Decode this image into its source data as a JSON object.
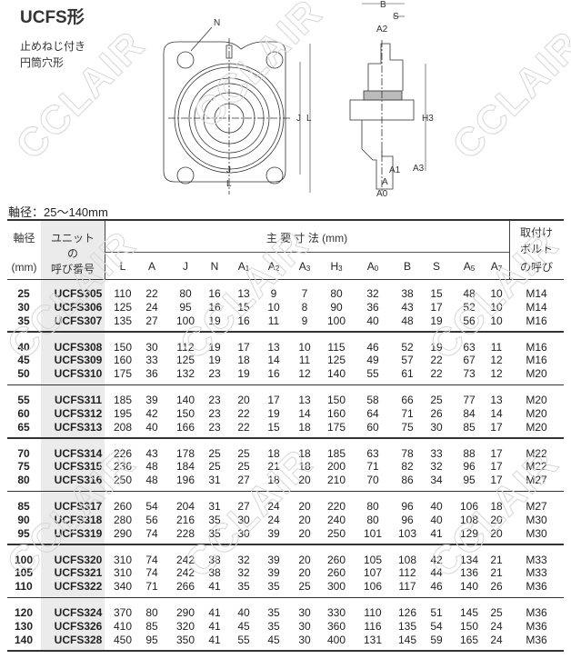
{
  "title": "UCFS形",
  "subtitle_lines": [
    "止めねじ付き",
    "円筒穴形"
  ],
  "watermark": "CCLAIR",
  "drawing_labels": {
    "N": "N",
    "J": "J",
    "L": "L",
    "B": "B",
    "S": "S",
    "A2": "A2",
    "H3": "H3",
    "A1": "A1",
    "A3": "A3",
    "A": "A",
    "A0": "A0"
  },
  "shaft_range": "軸径：25〜140mm",
  "table": {
    "head": {
      "shaft": "軸径",
      "shaft_unit": "(mm)",
      "unit_line1": "ユニット",
      "unit_line2": "の",
      "unit_line3": "呼び番号",
      "dims": "主 要 寸 法 (mm)",
      "bolt_line1": "取付け",
      "bolt_line2": "ボルト",
      "bolt_line3": "の呼び",
      "cols": [
        {
          "main": "L",
          "sub": ""
        },
        {
          "main": "A",
          "sub": ""
        },
        {
          "main": "J",
          "sub": ""
        },
        {
          "main": "N",
          "sub": ""
        },
        {
          "main": "A",
          "sub": "1"
        },
        {
          "main": "A",
          "sub": "2"
        },
        {
          "main": "A",
          "sub": "3"
        },
        {
          "main": "H",
          "sub": "3"
        },
        {
          "main": "A",
          "sub": "0"
        },
        {
          "main": "B",
          "sub": ""
        },
        {
          "main": "S",
          "sub": ""
        },
        {
          "main": "A",
          "sub": "5"
        },
        {
          "main": "A",
          "sub": "7"
        }
      ]
    },
    "groups": [
      [
        [
          "25",
          "UCFS305",
          "110",
          "22",
          "80",
          "16",
          "13",
          "9",
          "7",
          "80",
          "32",
          "38",
          "15",
          "48",
          "10",
          "M14"
        ],
        [
          "30",
          "UCFS306",
          "125",
          "24",
          "95",
          "16",
          "15",
          "10",
          "8",
          "90",
          "36",
          "43",
          "17",
          "52",
          "10",
          "M14"
        ],
        [
          "35",
          "UCFS307",
          "135",
          "27",
          "100",
          "19",
          "16",
          "11",
          "9",
          "100",
          "40",
          "48",
          "19",
          "56",
          "10",
          "M16"
        ]
      ],
      [
        [
          "40",
          "UCFS308",
          "150",
          "30",
          "112",
          "19",
          "17",
          "13",
          "10",
          "115",
          "46",
          "52",
          "19",
          "63",
          "11",
          "M16"
        ],
        [
          "45",
          "UCFS309",
          "160",
          "33",
          "125",
          "19",
          "18",
          "14",
          "11",
          "125",
          "49",
          "57",
          "22",
          "67",
          "12",
          "M16"
        ],
        [
          "50",
          "UCFS310",
          "175",
          "36",
          "132",
          "23",
          "19",
          "16",
          "12",
          "140",
          "55",
          "61",
          "22",
          "73",
          "12",
          "M20"
        ]
      ],
      [
        [
          "55",
          "UCFS311",
          "185",
          "39",
          "140",
          "23",
          "20",
          "17",
          "13",
          "150",
          "58",
          "66",
          "25",
          "77",
          "13",
          "M20"
        ],
        [
          "60",
          "UCFS312",
          "195",
          "42",
          "150",
          "23",
          "22",
          "19",
          "14",
          "160",
          "64",
          "71",
          "26",
          "84",
          "14",
          "M20"
        ],
        [
          "65",
          "UCFS313",
          "208",
          "40",
          "166",
          "23",
          "22",
          "15",
          "18",
          "175",
          "60",
          "75",
          "30",
          "85",
          "17",
          "M20"
        ]
      ],
      [
        [
          "70",
          "UCFS314",
          "226",
          "43",
          "178",
          "25",
          "25",
          "18",
          "18",
          "185",
          "63",
          "78",
          "33",
          "88",
          "17",
          "M22"
        ],
        [
          "75",
          "UCFS315",
          "236",
          "48",
          "184",
          "25",
          "25",
          "21",
          "18",
          "200",
          "71",
          "82",
          "32",
          "96",
          "17",
          "M22"
        ],
        [
          "80",
          "UCFS316",
          "250",
          "48",
          "196",
          "31",
          "27",
          "18",
          "20",
          "210",
          "70",
          "86",
          "34",
          "95",
          "17",
          "M27"
        ]
      ],
      [
        [
          "85",
          "UCFS317",
          "260",
          "54",
          "204",
          "31",
          "27",
          "24",
          "20",
          "220",
          "80",
          "96",
          "40",
          "106",
          "18",
          "M27"
        ],
        [
          "90",
          "UCFS318",
          "280",
          "56",
          "216",
          "35",
          "30",
          "24",
          "20",
          "240",
          "80",
          "96",
          "40",
          "108",
          "20",
          "M30"
        ],
        [
          "95",
          "UCFS319",
          "290",
          "74",
          "228",
          "35",
          "30",
          "39",
          "20",
          "250",
          "101",
          "103",
          "41",
          "129",
          "20",
          "M30"
        ]
      ],
      [
        [
          "100",
          "UCFS320",
          "310",
          "74",
          "242",
          "38",
          "32",
          "39",
          "20",
          "260",
          "105",
          "108",
          "42",
          "134",
          "21",
          "M33"
        ],
        [
          "105",
          "UCFS321",
          "310",
          "74",
          "242",
          "38",
          "32",
          "39",
          "20",
          "260",
          "107",
          "112",
          "44",
          "136",
          "21",
          "M33"
        ],
        [
          "110",
          "UCFS322",
          "340",
          "71",
          "266",
          "41",
          "35",
          "35",
          "25",
          "300",
          "106",
          "117",
          "46",
          "140",
          "26",
          "M36"
        ]
      ],
      [
        [
          "120",
          "UCFS324",
          "370",
          "80",
          "290",
          "41",
          "40",
          "35",
          "30",
          "330",
          "110",
          "126",
          "51",
          "145",
          "25",
          "M36"
        ],
        [
          "130",
          "UCFS326",
          "410",
          "85",
          "320",
          "41",
          "45",
          "35",
          "30",
          "360",
          "116",
          "135",
          "54",
          "150",
          "24",
          "M36"
        ],
        [
          "140",
          "UCFS328",
          "450",
          "95",
          "350",
          "41",
          "55",
          "45",
          "30",
          "400",
          "131",
          "145",
          "59",
          "165",
          "24",
          "M36"
        ]
      ]
    ]
  }
}
